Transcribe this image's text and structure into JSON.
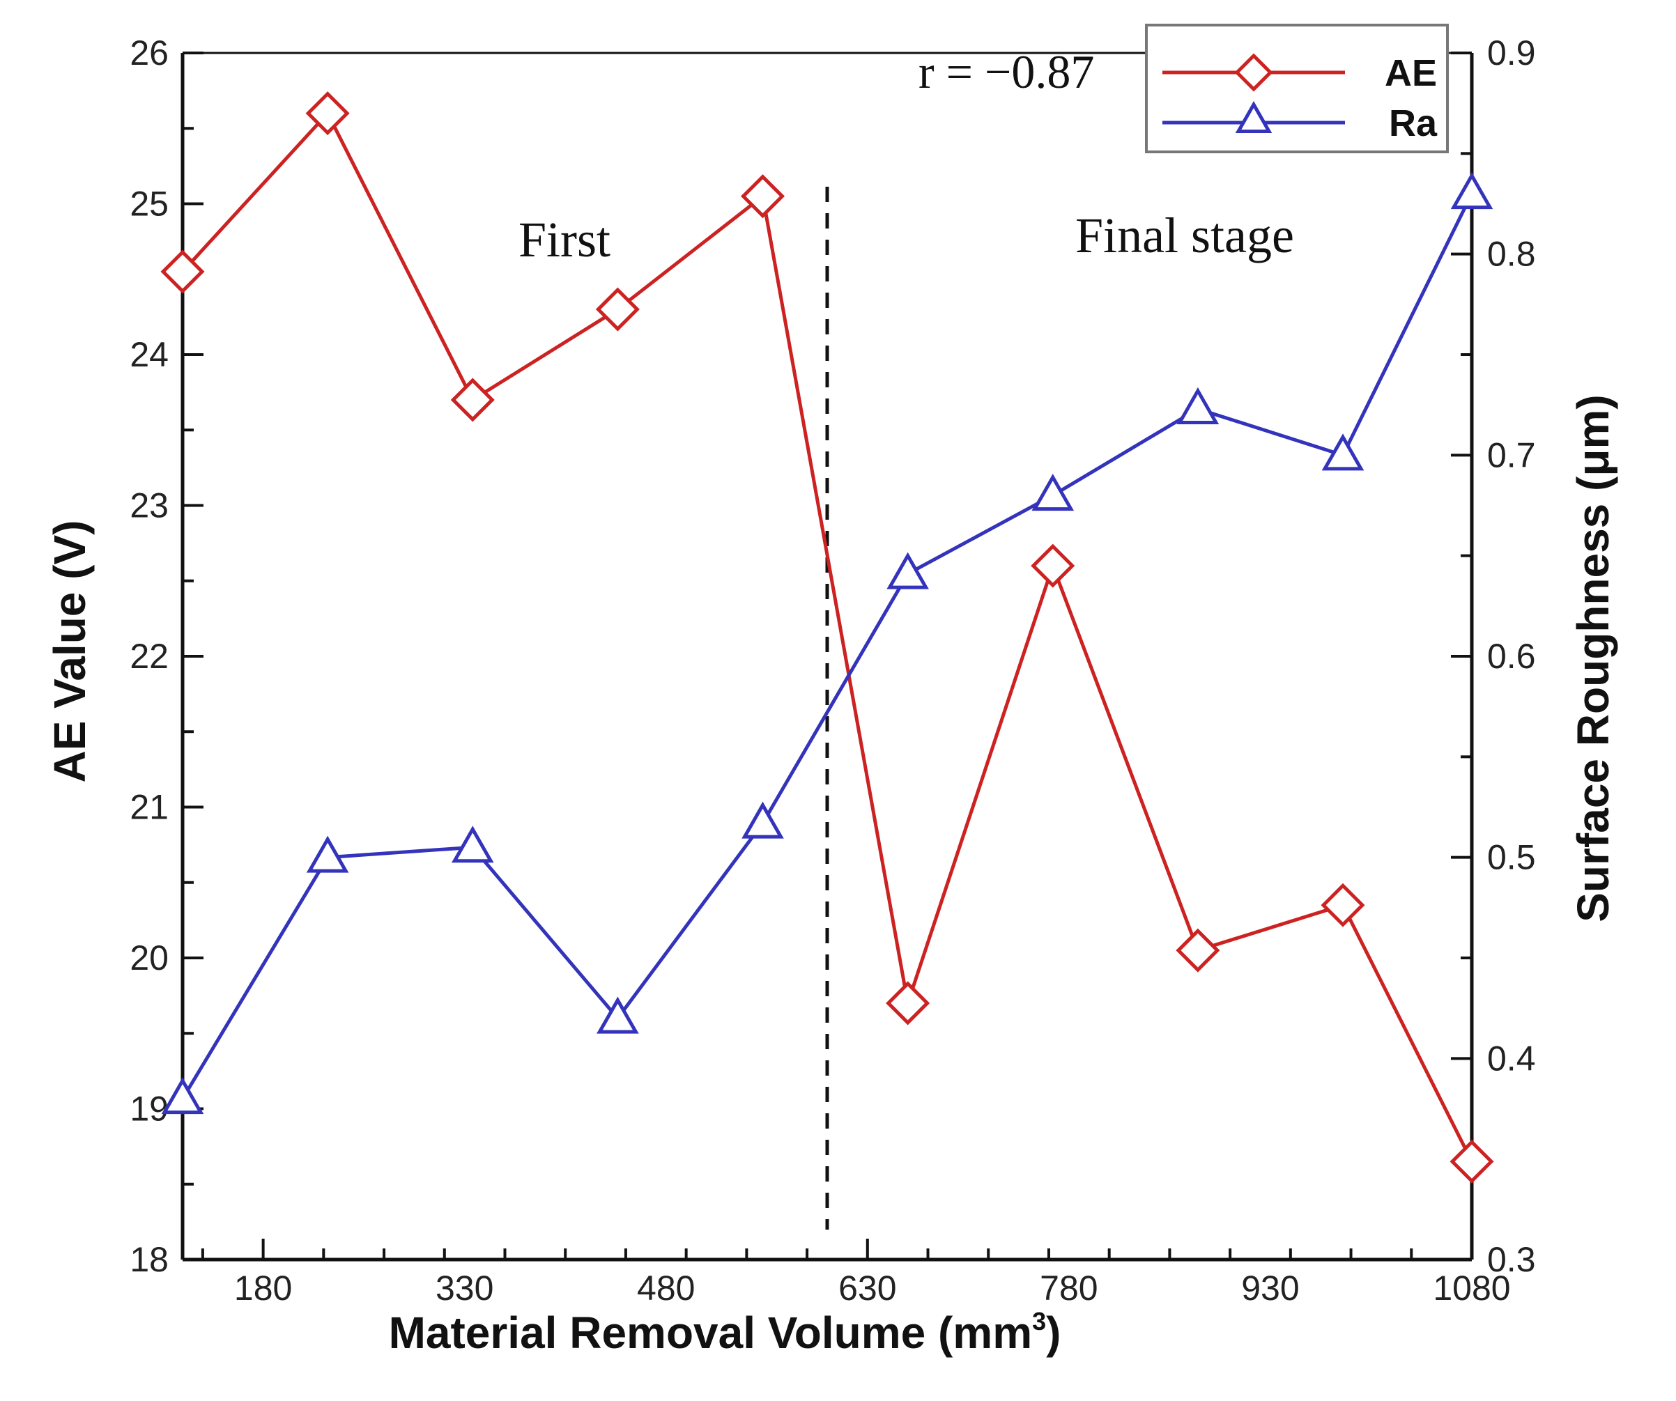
{
  "chart_data": {
    "type": "line",
    "title": "",
    "xlabel": "Material Removal Volume (mm",
    "xlabel_superscript": "3",
    "xlabel_suffix": ")",
    "ylabel_left": "AE Value (V)",
    "ylabel_right": "Surface Roughness (μm)",
    "xlim": [
      120,
      1080
    ],
    "ylim_left": [
      18,
      26
    ],
    "ylim_right": [
      0.3,
      0.9
    ],
    "xticks": [
      "180",
      "330",
      "480",
      "630",
      "780",
      "930",
      "1080"
    ],
    "yticks_left": [
      "18",
      "19",
      "20",
      "21",
      "22",
      "23",
      "24",
      "25",
      "26"
    ],
    "yticks_right": [
      "0.3",
      "0.4",
      "0.5",
      "0.6",
      "0.7",
      "0.8",
      "0.9"
    ],
    "x": [
      120,
      228,
      336,
      444,
      552,
      660,
      768,
      876,
      984,
      1080
    ],
    "series": [
      {
        "name": "AE",
        "axis": "left",
        "marker": "diamond",
        "color": "#cc2222",
        "values": [
          24.55,
          25.6,
          23.7,
          24.3,
          25.05,
          19.7,
          22.6,
          20.05,
          20.35,
          18.65
        ]
      },
      {
        "name": "Ra",
        "axis": "right",
        "marker": "triangle",
        "color": "#3333bb",
        "values": [
          0.38,
          0.5,
          0.505,
          0.42,
          0.517,
          0.641,
          0.68,
          0.723,
          0.7,
          0.83
        ]
      }
    ],
    "divider_x": 600,
    "annotations": {
      "first": "First",
      "final": "Final stage",
      "correlation": "r = −0.87"
    },
    "legend_position": "top-right"
  }
}
